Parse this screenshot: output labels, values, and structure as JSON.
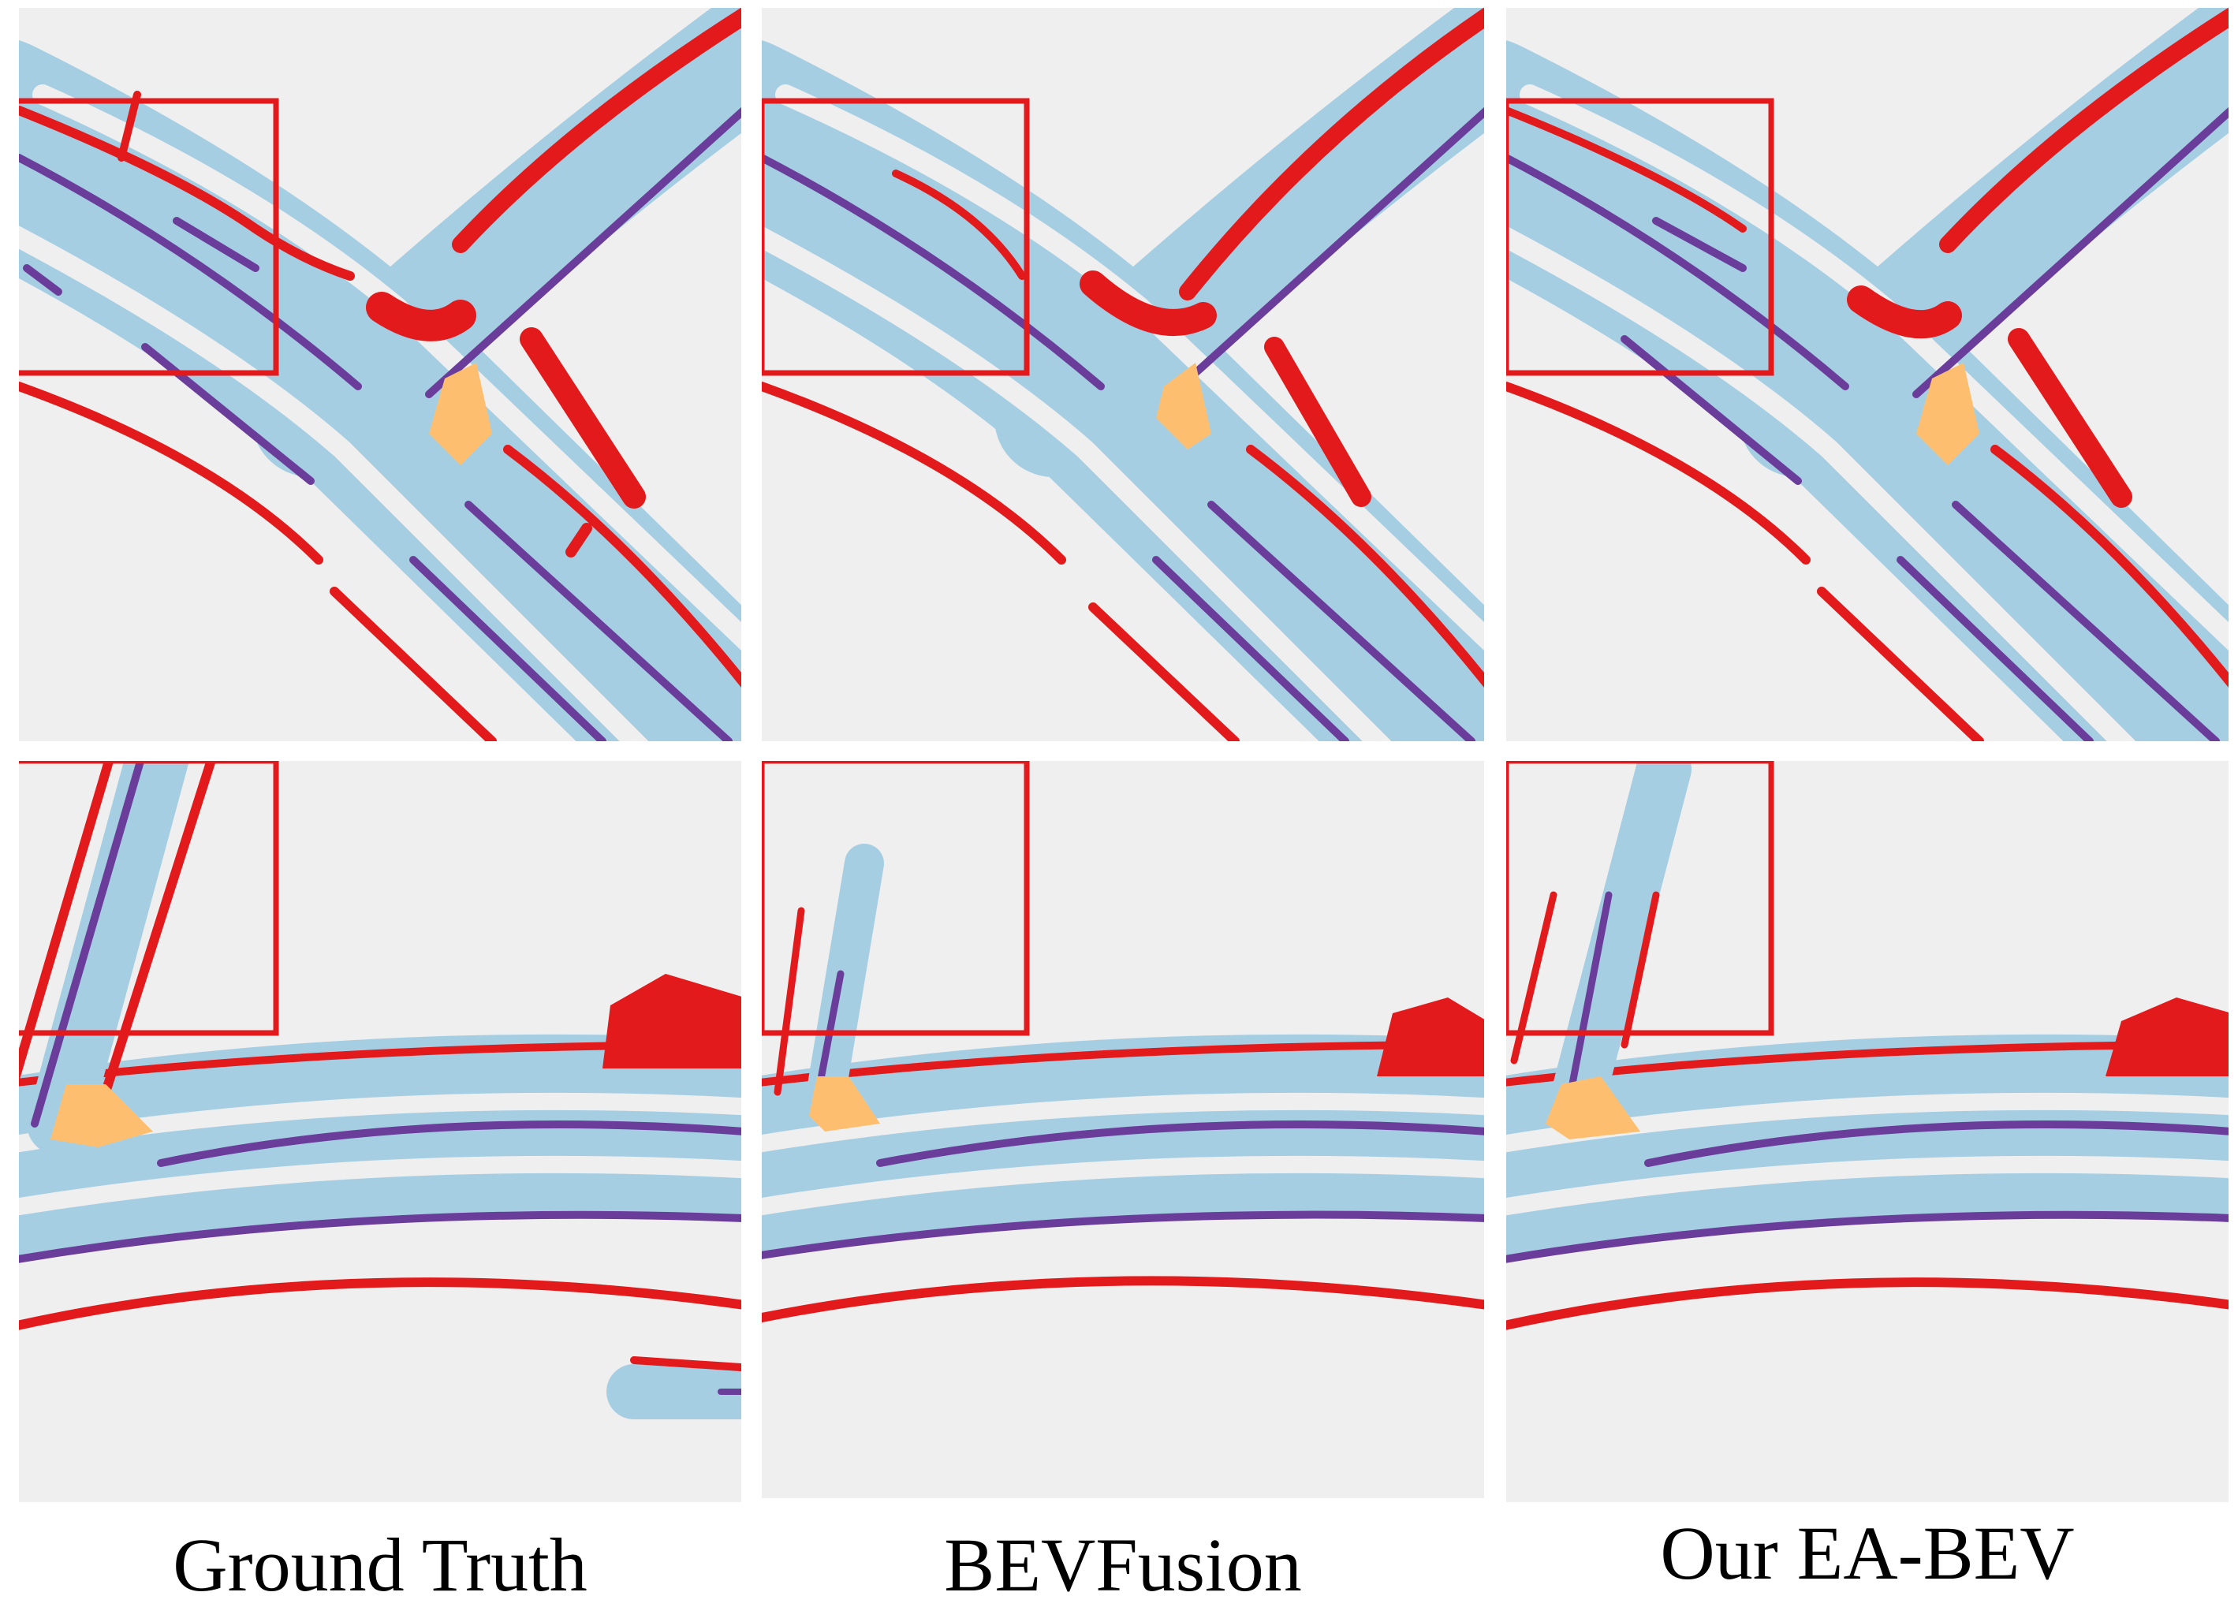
{
  "figure": {
    "colors": {
      "background": "#efefef",
      "drivable_area": "#a6cee3",
      "lane_divider": "#6a3d9a",
      "road_boundary": "#e31a1c",
      "crossing": "#fdbf6f",
      "highlight_box": "#e31a1c"
    },
    "columns": [
      {
        "caption": "Ground Truth"
      },
      {
        "caption": "BEVFusion"
      },
      {
        "caption": "Our EA-BEV"
      }
    ]
  }
}
